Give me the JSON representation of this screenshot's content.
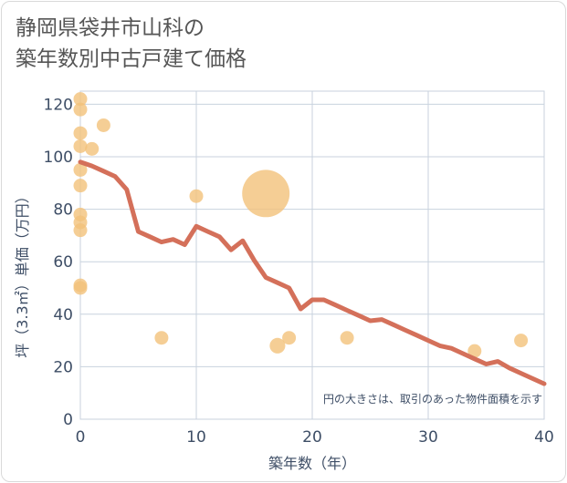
{
  "title_line1": "静岡県袋井市山科の",
  "title_line2": "築年数別中古戸建て価格",
  "chart_data": {
    "type": "scatter",
    "title": "静岡県袋井市山科の築年数別中古戸建て価格",
    "xlabel": "築年数（年）",
    "ylabel": "坪（3.3㎡）単価（万円）",
    "xlim": [
      0,
      40
    ],
    "ylim": [
      0,
      125
    ],
    "xticks": [
      0,
      10,
      20,
      30,
      40
    ],
    "yticks": [
      0,
      20,
      40,
      60,
      80,
      100,
      120
    ],
    "grid": true,
    "note": "円の大きさは、取引のあった物件面積を示す",
    "colors": {
      "points": "#f2c27a",
      "line": "#d4705a",
      "grid": "#c8d2de"
    },
    "points": [
      {
        "x": 0,
        "y": 122,
        "size": 1
      },
      {
        "x": 0,
        "y": 118,
        "size": 1
      },
      {
        "x": 0,
        "y": 109,
        "size": 1
      },
      {
        "x": 0,
        "y": 104,
        "size": 1
      },
      {
        "x": 0,
        "y": 95,
        "size": 1
      },
      {
        "x": 0,
        "y": 89,
        "size": 1
      },
      {
        "x": 0,
        "y": 78,
        "size": 1
      },
      {
        "x": 0,
        "y": 75,
        "size": 1
      },
      {
        "x": 0,
        "y": 72,
        "size": 1
      },
      {
        "x": 0,
        "y": 51,
        "size": 1
      },
      {
        "x": 0,
        "y": 50,
        "size": 1
      },
      {
        "x": 1,
        "y": 103,
        "size": 1
      },
      {
        "x": 2,
        "y": 112,
        "size": 1
      },
      {
        "x": 7,
        "y": 31,
        "size": 1
      },
      {
        "x": 10,
        "y": 85,
        "size": 1
      },
      {
        "x": 16,
        "y": 86,
        "size": 12
      },
      {
        "x": 17,
        "y": 28,
        "size": 1.3
      },
      {
        "x": 18,
        "y": 31,
        "size": 1
      },
      {
        "x": 23,
        "y": 31,
        "size": 1
      },
      {
        "x": 34,
        "y": 26,
        "size": 1
      },
      {
        "x": 38,
        "y": 30,
        "size": 1
      }
    ],
    "trend": {
      "x": [
        0,
        1,
        2,
        3,
        4,
        5,
        6,
        7,
        8,
        9,
        10,
        11,
        12,
        13,
        14,
        15,
        16,
        17,
        18,
        19,
        20,
        21,
        22,
        23,
        24,
        25,
        26,
        27,
        28,
        29,
        30,
        31,
        32,
        33,
        34,
        35,
        36,
        37,
        38,
        39,
        40
      ],
      "y": [
        98,
        96.5,
        94.5,
        92.5,
        87.5,
        71.5,
        69.5,
        67.5,
        68.5,
        66.5,
        73.5,
        71.5,
        69.5,
        64.5,
        68,
        60.5,
        54,
        52,
        50,
        42,
        45.5,
        45.5,
        43.5,
        41.5,
        39.5,
        37.5,
        38,
        36,
        34,
        32,
        30,
        28,
        27,
        25,
        23,
        21,
        22,
        19.5,
        17.5,
        15.5,
        13.5
      ]
    }
  }
}
